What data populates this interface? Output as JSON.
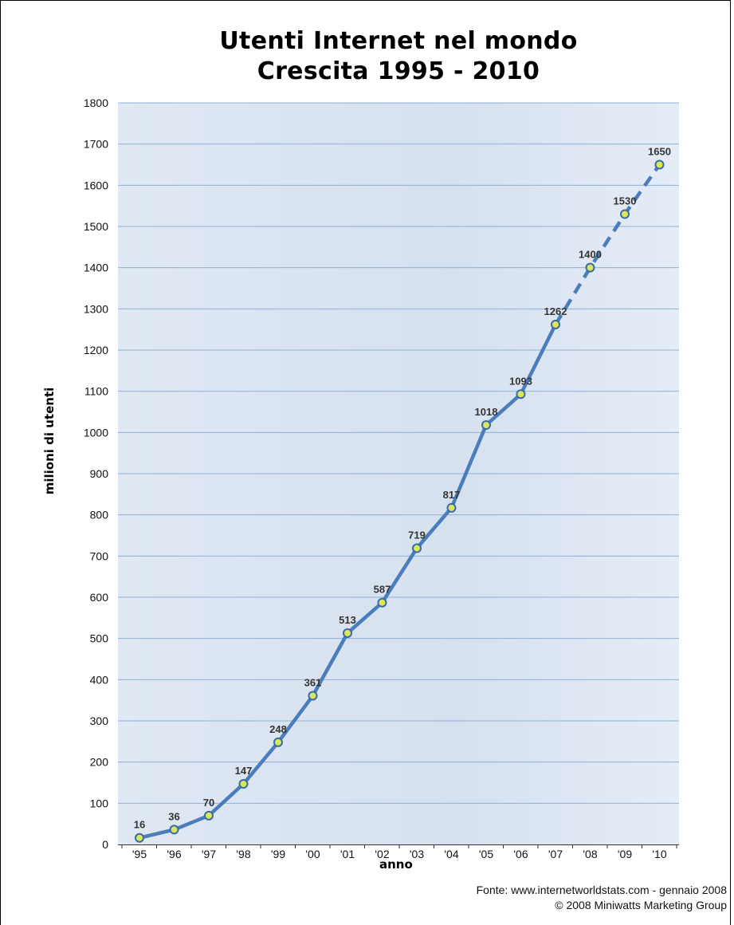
{
  "chart_data": {
    "type": "line",
    "title": "Utenti Internet nel mondo",
    "subtitle": "Crescita 1995 - 2010",
    "xlabel": "anno",
    "ylabel": "milioni di utenti",
    "categories": [
      "'95",
      "'96",
      "'97",
      "'98",
      "'99",
      "'00",
      "'01",
      "'02",
      "'03",
      "'04",
      "'05",
      "'06",
      "'07",
      "'08",
      "'09",
      "'10"
    ],
    "series": [
      {
        "values": [
          16,
          36,
          70,
          147,
          248,
          361,
          513,
          587,
          719,
          817,
          1018,
          1093,
          1262,
          1400,
          1530,
          1650
        ],
        "labels": [
          "16",
          "36",
          "70",
          "147",
          "248",
          "361",
          "513",
          "587",
          "719",
          "817",
          "1018",
          "1093",
          "1262",
          "1400",
          "1530",
          "1650"
        ],
        "projected_from_index": 12
      }
    ],
    "ylim": [
      0,
      1800
    ],
    "yticks": [
      0,
      100,
      200,
      300,
      400,
      500,
      600,
      700,
      800,
      900,
      1000,
      1100,
      1200,
      1300,
      1400,
      1500,
      1600,
      1700,
      1800
    ],
    "grid": true,
    "legend": "none",
    "colors": {
      "line": "#4a7dbb",
      "marker_fill": "#d8e85a",
      "marker_edge": "#3a6aa8",
      "plot_bg": "#dbe5f1",
      "grid": "#8fb0d8"
    }
  },
  "source": {
    "line1": "Fonte: www.internetworldstats.com - gennaio 2008",
    "line2": "© 2008 Miniwatts Marketing Group"
  }
}
